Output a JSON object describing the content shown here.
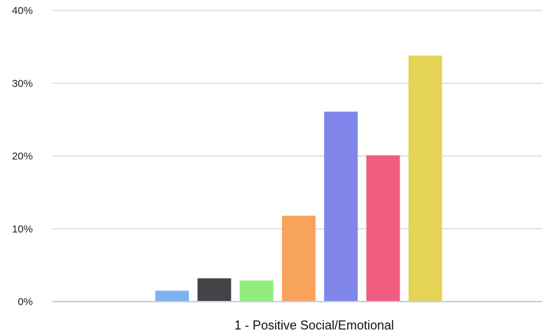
{
  "chart_data": {
    "type": "bar",
    "categories": [
      "1 - Positive  Social/Emotional"
    ],
    "series": [
      {
        "values": [
          1.5
        ],
        "color": "#7ab3ef"
      },
      {
        "values": [
          3.2
        ],
        "color": "#434348"
      },
      {
        "values": [
          2.9
        ],
        "color": "#90ed7d"
      },
      {
        "values": [
          11.8
        ],
        "color": "#f7a35c"
      },
      {
        "values": [
          26.1
        ],
        "color": "#8085e9"
      },
      {
        "values": [
          20.1
        ],
        "color": "#f15c80"
      },
      {
        "values": [
          33.8
        ],
        "color": "#e4d354"
      }
    ],
    "y_ticks": [
      "0%",
      "10%",
      "20%",
      "30%",
      "40%"
    ],
    "ylim": [
      0,
      40
    ],
    "grid": true,
    "legend": "none",
    "gridline_color": "#c8c8c8",
    "baseline_color": "#c0d0e0"
  }
}
